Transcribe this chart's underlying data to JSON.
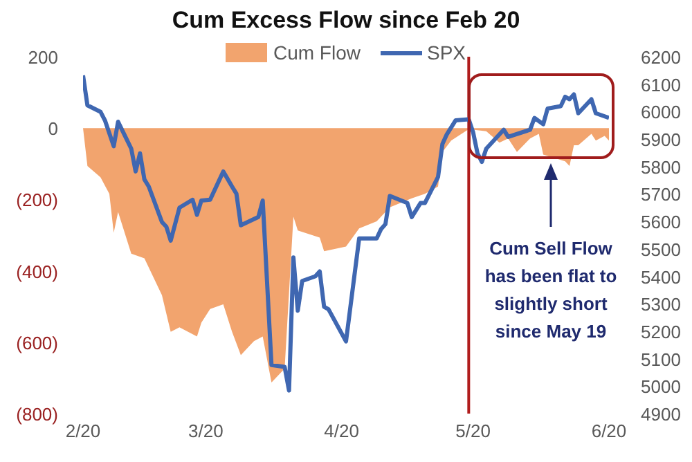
{
  "chart_data": {
    "type": "area",
    "title": "Cum Excess Flow since Feb 20",
    "xlim": [
      "--02-20",
      "--06-20"
    ],
    "xticks": [
      {
        "value": "--02-20",
        "label": "2/20"
      },
      {
        "value": "--03-20",
        "label": "3/20"
      },
      {
        "value": "--04-20",
        "label": "4/20"
      },
      {
        "value": "--05-20",
        "label": "5/20"
      },
      {
        "value": "--06-20",
        "label": "6/20"
      }
    ],
    "ylim": [
      -800,
      200
    ],
    "yticks": [
      200,
      0,
      {
        "value": -200,
        "label": "(200)"
      },
      {
        "value": -400,
        "label": "(400)"
      },
      {
        "value": -600,
        "label": "(600)"
      },
      {
        "value": -800,
        "label": "(800)"
      }
    ],
    "y2lim": [
      4900,
      6200
    ],
    "y2ticks": [
      4900,
      5000,
      5100,
      5200,
      5300,
      5400,
      5500,
      5600,
      5700,
      5800,
      5900,
      6000,
      6100,
      6200
    ],
    "series": [
      {
        "name": "Cum Flow",
        "color": "#f2a46e",
        "x": [
          "--02-20",
          "--02-21",
          "--02-24",
          "--02-26",
          "--02-27",
          "--02-28",
          "--03-03",
          "--03-06",
          "--03-10",
          "--03-12",
          "--03-14",
          "--03-18",
          "--03-19",
          "--03-21",
          "--03-24",
          "--03-26",
          "--03-28",
          "--03-31",
          "--04-02",
          "--04-04",
          "--04-07",
          "--04-09",
          "--04-10",
          "--04-15",
          "--04-16",
          "--04-21",
          "--04-24",
          "--04-28",
          "--05-01",
          "--05-06",
          "--05-09",
          "--05-12",
          "--05-13",
          "--05-15",
          "--05-19",
          "--05-23",
          "--05-26",
          "--05-28",
          "--05-30",
          "--06-02",
          "--06-04",
          "--06-05",
          "--06-10",
          "--06-11",
          "--06-12",
          "--06-13",
          "--06-16",
          "--06-17",
          "--06-19",
          "--06-20"
        ],
        "values": [
          0,
          -106,
          -138,
          -184,
          -293,
          -235,
          -352,
          -365,
          -468,
          -571,
          -558,
          -584,
          -545,
          -507,
          -494,
          -571,
          -636,
          -597,
          -584,
          -713,
          -674,
          -248,
          -287,
          -307,
          -345,
          -332,
          -281,
          -261,
          -222,
          -197,
          -184,
          -164,
          -67,
          -35,
          -3,
          -9,
          -41,
          -29,
          -67,
          -29,
          -16,
          -74,
          -93,
          -106,
          -48,
          -48,
          -16,
          -35,
          -22,
          -35
        ]
      },
      {
        "name": "SPX",
        "type": "line",
        "axis": "y2",
        "color": "#3f67b1",
        "x": [
          "--02-20",
          "--02-21",
          "--02-24",
          "--02-25",
          "--02-27",
          "--02-28",
          "--03-03",
          "--03-04",
          "--03-05",
          "--03-06",
          "--03-07",
          "--03-10",
          "--03-11",
          "--03-12",
          "--03-14",
          "--03-17",
          "--03-18",
          "--03-19",
          "--03-21",
          "--03-24",
          "--03-26",
          "--03-27",
          "--03-28",
          "--04-01",
          "--04-02",
          "--04-04",
          "--04-07",
          "--04-08",
          "--04-09",
          "--04-10",
          "--04-11",
          "--04-14",
          "--04-15",
          "--04-16",
          "--04-17",
          "--04-21",
          "--04-24",
          "--04-28",
          "--04-29",
          "--04-30",
          "--05-01",
          "--05-05",
          "--05-06",
          "--05-08",
          "--05-09",
          "--05-12",
          "--05-13",
          "--05-14",
          "--05-16",
          "--05-19",
          "--05-20",
          "--05-21",
          "--05-22",
          "--05-23",
          "--05-27",
          "--05-28",
          "--06-02",
          "--06-03",
          "--06-05",
          "--06-06",
          "--06-09",
          "--06-10",
          "--06-11",
          "--06-12",
          "--06-13",
          "--06-16",
          "--06-17",
          "--06-20"
        ],
        "values": [
          6132,
          6023,
          5999,
          5968,
          5874,
          5963,
          5865,
          5782,
          5848,
          5753,
          5727,
          5598,
          5581,
          5530,
          5650,
          5679,
          5624,
          5676,
          5679,
          5782,
          5727,
          5701,
          5586,
          5616,
          5676,
          5077,
          5070,
          4984,
          5469,
          5275,
          5383,
          5400,
          5418,
          5289,
          5280,
          5163,
          5538,
          5538,
          5572,
          5590,
          5693,
          5667,
          5616,
          5667,
          5667,
          5762,
          5882,
          5917,
          5968,
          5972,
          5925,
          5848,
          5817,
          5865,
          5934,
          5908,
          5934,
          5977,
          5954,
          6011,
          6020,
          6054,
          6045,
          6063,
          5994,
          6045,
          5994,
          5977
        ]
      }
    ],
    "ref_lines": [
      {
        "axis": "x",
        "value": "--05-19",
        "color": "#b01c1c"
      }
    ],
    "annotations": [
      "Cum Sell Flow has been flat to slightly short since May 19"
    ],
    "legend": "top"
  }
}
